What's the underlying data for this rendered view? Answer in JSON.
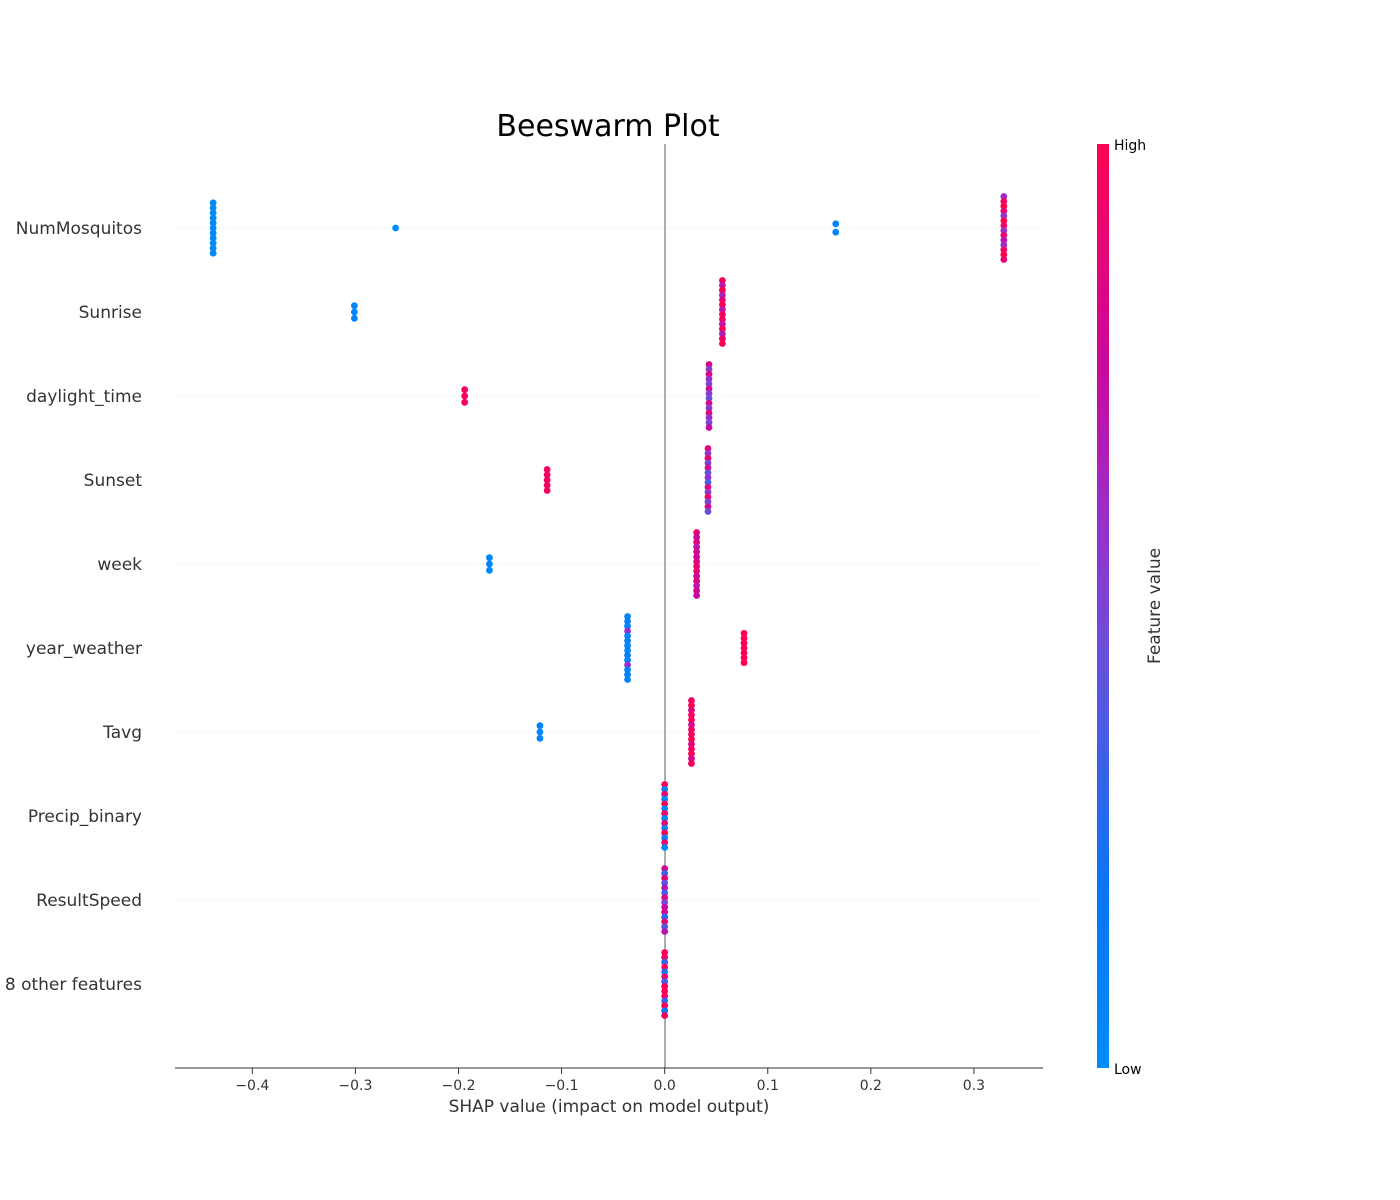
{
  "chart_data": {
    "type": "scatter",
    "subtype": "beeswarm",
    "title": "Beeswarm Plot",
    "xlabel": "SHAP value (impact on model output)",
    "xlim": [
      -0.475,
      0.367
    ],
    "xticks": [
      -0.4,
      -0.3,
      -0.2,
      -0.1,
      0.0,
      0.1,
      0.2,
      0.3
    ],
    "xtick_labels": [
      "−0.4",
      "−0.3",
      "−0.2",
      "−0.1",
      "0.0",
      "0.1",
      "0.2",
      "0.3"
    ],
    "grid": false,
    "colorbar": {
      "label": "Feature value",
      "high_label": "High",
      "low_label": "Low",
      "low_color": "#008afb",
      "high_color": "#ff0052"
    },
    "features": [
      {
        "name": "NumMosquitos",
        "clusters": [
          {
            "x": -0.438,
            "spread": 0.6,
            "colors": [
              0
            ]
          },
          {
            "x": -0.261,
            "spread": 0.05,
            "colors": [
              0
            ]
          },
          {
            "x": 0.166,
            "spread": 0.1,
            "colors": [
              0.05
            ]
          },
          {
            "x": 0.329,
            "spread": 0.75,
            "colors": [
              0.6,
              0.95,
              1,
              0.9,
              0.55,
              1,
              0.95,
              0.6,
              0.9,
              0.7
            ]
          }
        ]
      },
      {
        "name": "Sunrise",
        "clusters": [
          {
            "x": -0.301,
            "spread": 0.15,
            "colors": [
              0.05
            ]
          },
          {
            "x": 0.056,
            "spread": 0.75,
            "colors": [
              0.95,
              0.7,
              1,
              0.65,
              0.9,
              1,
              0.7,
              0.95
            ]
          }
        ]
      },
      {
        "name": "daylight_time",
        "clusters": [
          {
            "x": -0.194,
            "spread": 0.15,
            "colors": [
              0.95
            ]
          },
          {
            "x": 0.043,
            "spread": 0.75,
            "colors": [
              0.8,
              0.55,
              0.85,
              0.6,
              0.5,
              0.75,
              0.55,
              0.45
            ]
          }
        ]
      },
      {
        "name": "Sunset",
        "clusters": [
          {
            "x": -0.114,
            "spread": 0.25,
            "colors": [
              0.95
            ]
          },
          {
            "x": 0.042,
            "spread": 0.75,
            "colors": [
              0.85,
              0.55,
              0.9,
              0.5,
              0.8,
              0.45,
              0.6,
              0.35
            ]
          }
        ]
      },
      {
        "name": "week",
        "clusters": [
          {
            "x": -0.17,
            "spread": 0.15,
            "colors": [
              0.05
            ]
          },
          {
            "x": 0.031,
            "spread": 0.75,
            "colors": [
              0.9,
              0.75,
              0.85,
              0.7,
              0.8,
              0.75,
              0.85,
              0.9
            ]
          }
        ]
      },
      {
        "name": "year_weather",
        "clusters": [
          {
            "x": -0.036,
            "spread": 0.75,
            "colors": [
              0.05,
              0.1,
              0.05,
              0.6,
              0.05,
              0.1,
              0.05
            ]
          },
          {
            "x": 0.077,
            "spread": 0.35,
            "colors": [
              1
            ]
          }
        ]
      },
      {
        "name": "Tavg",
        "clusters": [
          {
            "x": -0.121,
            "spread": 0.15,
            "colors": [
              0.05
            ]
          },
          {
            "x": 0.026,
            "spread": 0.75,
            "colors": [
              0.95,
              1,
              0.85,
              0.95,
              1,
              0.8,
              0.95
            ]
          }
        ]
      },
      {
        "name": "Precip_binary",
        "clusters": [
          {
            "x": 0.0,
            "spread": 0.75,
            "colors": [
              1,
              0.1,
              0.9,
              0.05,
              1,
              0.1,
              0.95,
              0.05,
              0.9,
              0.1
            ]
          }
        ]
      },
      {
        "name": "ResultSpeed",
        "clusters": [
          {
            "x": 0.0,
            "spread": 0.75,
            "colors": [
              0.8,
              0.3,
              0.9,
              0.4,
              0.7,
              0.35,
              0.85,
              0.5,
              0.75
            ]
          }
        ]
      },
      {
        "name": "8 other features",
        "clusters": [
          {
            "x": 0.0,
            "spread": 0.75,
            "colors": [
              1,
              0.95,
              0.3,
              1,
              0.2,
              0.95,
              0.35,
              1
            ]
          }
        ]
      }
    ]
  }
}
